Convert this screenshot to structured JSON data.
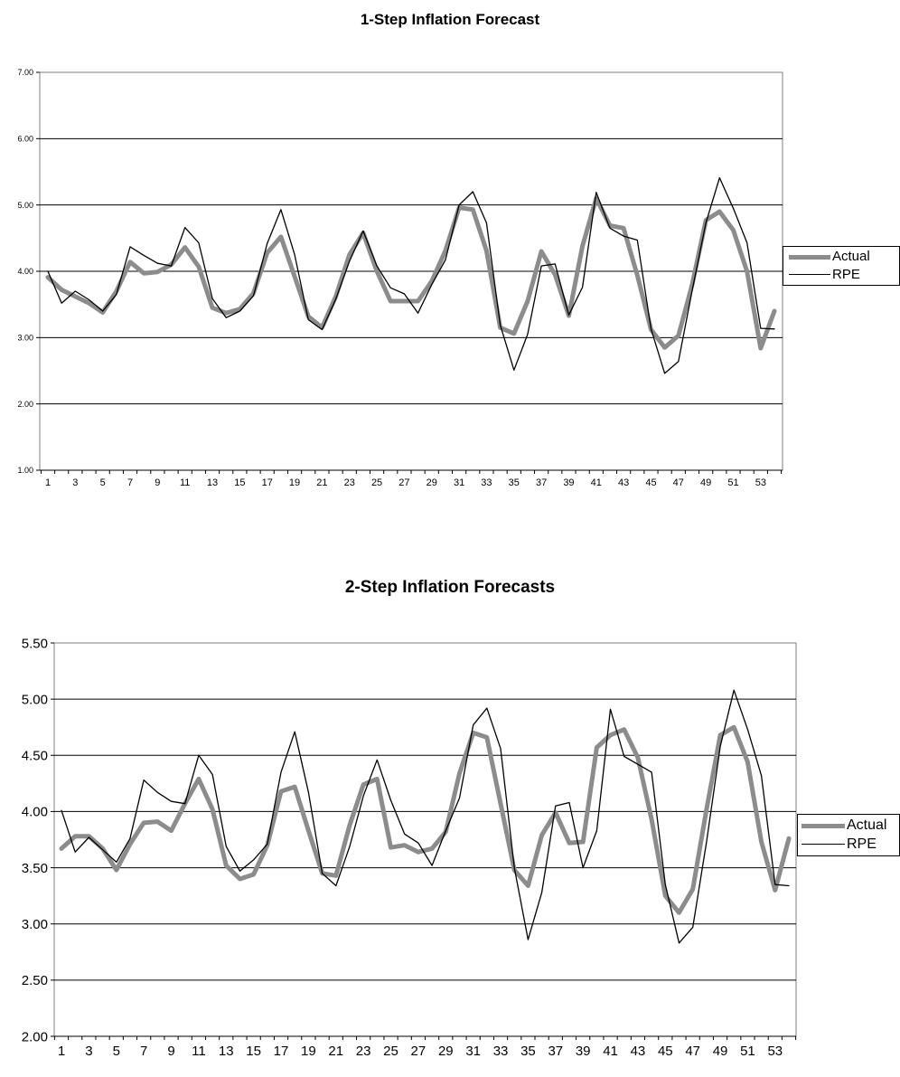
{
  "colors": {
    "actual": "#8c8c8c",
    "rpe": "#000000",
    "grid": "#000000",
    "plot_border": "#808080"
  },
  "chart_data": [
    {
      "type": "line",
      "title": "1-Step Inflation Forecast",
      "xlabel": "",
      "ylabel": "",
      "ylim": [
        1.0,
        7.0
      ],
      "yticks": [
        "1.00",
        "2.00",
        "3.00",
        "4.00",
        "5.00",
        "6.00",
        "7.00"
      ],
      "xticks": [
        "1",
        "3",
        "5",
        "7",
        "9",
        "11",
        "13",
        "15",
        "17",
        "19",
        "21",
        "23",
        "25",
        "27",
        "29",
        "31",
        "33",
        "35",
        "37",
        "39",
        "41",
        "43",
        "45",
        "47",
        "49",
        "51",
        "53"
      ],
      "grid": "horizontal",
      "legend_position": "right",
      "x": [
        1,
        2,
        3,
        4,
        5,
        6,
        7,
        8,
        9,
        10,
        11,
        12,
        13,
        14,
        15,
        16,
        17,
        18,
        19,
        20,
        21,
        22,
        23,
        24,
        25,
        26,
        27,
        28,
        29,
        30,
        31,
        32,
        33,
        34,
        35,
        36,
        37,
        38,
        39,
        40,
        41,
        42,
        43,
        44,
        45,
        46,
        47,
        48,
        49,
        50,
        51,
        52,
        53,
        54
      ],
      "series": [
        {
          "name": "Actual",
          "values": [
            3.91,
            3.72,
            3.62,
            3.52,
            3.38,
            3.7,
            4.14,
            3.97,
            3.99,
            4.1,
            4.36,
            4.07,
            3.45,
            3.37,
            3.43,
            3.67,
            4.28,
            4.52,
            3.92,
            3.32,
            3.15,
            3.62,
            4.25,
            4.58,
            4.0,
            3.55,
            3.55,
            3.55,
            3.85,
            4.31,
            4.96,
            4.93,
            4.31,
            3.15,
            3.06,
            3.55,
            4.3,
            3.95,
            3.33,
            4.38,
            5.1,
            4.69,
            4.65,
            3.94,
            3.12,
            2.85,
            3.03,
            3.8,
            4.77,
            4.9,
            4.62,
            4.0,
            2.84,
            3.4
          ]
        },
        {
          "name": "RPE",
          "values": [
            4.0,
            3.52,
            3.7,
            3.57,
            3.4,
            3.65,
            4.37,
            4.24,
            4.12,
            4.08,
            4.66,
            4.43,
            3.59,
            3.3,
            3.4,
            3.63,
            4.42,
            4.93,
            4.25,
            3.27,
            3.12,
            3.58,
            4.15,
            4.61,
            4.08,
            3.75,
            3.66,
            3.37,
            3.8,
            4.17,
            5.0,
            5.2,
            4.73,
            3.19,
            2.51,
            3.05,
            4.08,
            4.11,
            3.34,
            3.76,
            5.19,
            4.65,
            4.53,
            4.47,
            3.13,
            2.46,
            2.64,
            3.71,
            4.73,
            5.41,
            4.95,
            4.43,
            3.14,
            3.13
          ]
        }
      ]
    },
    {
      "type": "line",
      "title": "2-Step Inflation Forecasts",
      "xlabel": "",
      "ylabel": "",
      "ylim": [
        2.0,
        5.5
      ],
      "yticks": [
        "2.00",
        "2.50",
        "3.00",
        "3.50",
        "4.00",
        "4.50",
        "5.00",
        "5.50"
      ],
      "xticks": [
        "1",
        "3",
        "5",
        "7",
        "9",
        "11",
        "13",
        "15",
        "17",
        "19",
        "21",
        "23",
        "25",
        "27",
        "29",
        "31",
        "33",
        "35",
        "37",
        "39",
        "41",
        "43",
        "45",
        "47",
        "49",
        "51",
        "53"
      ],
      "grid": "horizontal",
      "legend_position": "right",
      "x": [
        1,
        2,
        3,
        4,
        5,
        6,
        7,
        8,
        9,
        10,
        11,
        12,
        13,
        14,
        15,
        16,
        17,
        18,
        19,
        20,
        21,
        22,
        23,
        24,
        25,
        26,
        27,
        28,
        29,
        30,
        31,
        32,
        33,
        34,
        35,
        36,
        37,
        38,
        39,
        40,
        41,
        42,
        43,
        44,
        45,
        46,
        47,
        48,
        49,
        50,
        51,
        52,
        53,
        54
      ],
      "series": [
        {
          "name": "Actual",
          "values": [
            3.67,
            3.78,
            3.78,
            3.67,
            3.48,
            3.71,
            3.9,
            3.91,
            3.83,
            4.07,
            4.29,
            4.02,
            3.52,
            3.4,
            3.44,
            3.7,
            4.18,
            4.22,
            3.83,
            3.45,
            3.43,
            3.88,
            4.24,
            4.29,
            3.68,
            3.7,
            3.64,
            3.67,
            3.82,
            4.34,
            4.7,
            4.66,
            4.07,
            3.48,
            3.34,
            3.79,
            3.99,
            3.72,
            3.73,
            4.57,
            4.68,
            4.73,
            4.48,
            3.93,
            3.25,
            3.1,
            3.31,
            4.02,
            4.68,
            4.75,
            4.44,
            3.73,
            3.3,
            3.76
          ]
        },
        {
          "name": "RPE",
          "values": [
            4.01,
            3.64,
            3.77,
            3.66,
            3.55,
            3.76,
            4.28,
            4.17,
            4.09,
            4.07,
            4.5,
            4.33,
            3.69,
            3.47,
            3.57,
            3.71,
            4.35,
            4.71,
            4.17,
            3.45,
            3.34,
            3.69,
            4.14,
            4.46,
            4.1,
            3.8,
            3.72,
            3.52,
            3.83,
            4.12,
            4.77,
            4.92,
            4.56,
            3.5,
            2.86,
            3.28,
            4.05,
            4.08,
            3.5,
            3.83,
            4.91,
            4.49,
            4.42,
            4.35,
            3.35,
            2.83,
            2.97,
            3.73,
            4.58,
            5.08,
            4.73,
            4.32,
            3.35,
            3.34
          ]
        }
      ]
    }
  ]
}
